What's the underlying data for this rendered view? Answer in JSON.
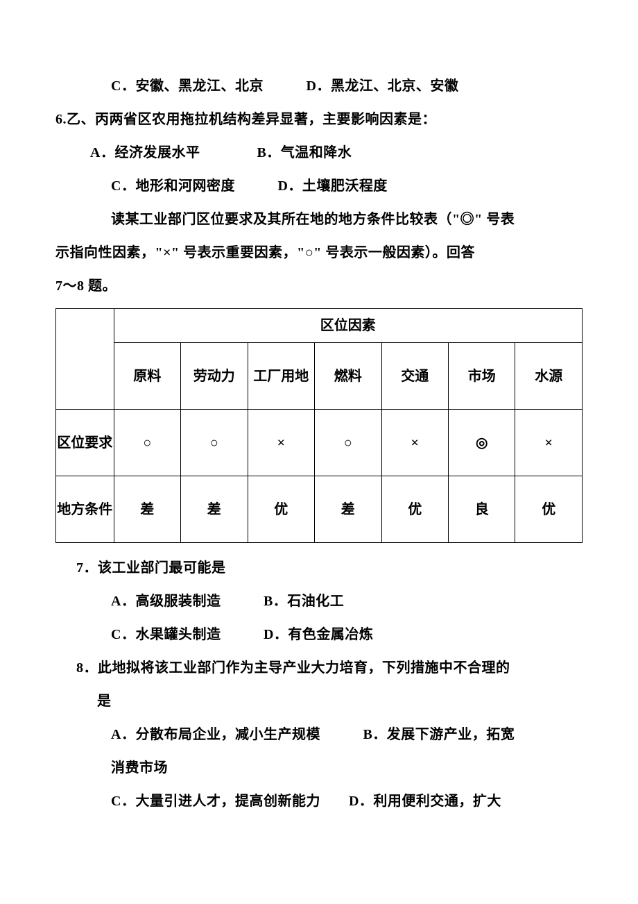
{
  "text": {
    "line1": "C．安徽、黑龙江、北京　　　D．黑龙江、北京、安徽",
    "q6": "6.乙、丙两省区农用拖拉机结构差异显著，主要影响因素是：",
    "q6a": "A．经济发展水平　　　　B．气温和降水",
    "q6c": "C．地形和河网密度　　　D．土壤肥沃程度",
    "para1": "读某工业部门区位要求及其所在地的地方条件比较表（\"◎\" 号表",
    "para2": "示指向性因素，\"×\" 号表示重要因素，\"○\" 号表示一般因素）。回答",
    "para3": "7～8 题。",
    "q7": "7．该工业部门最可能是",
    "q7a": "A．高级服装制造　　　B．石油化工",
    "q7c": "C．水果罐头制造　　　D．有色金属冶炼",
    "q8": "8．此地拟将该工业部门作为主导产业大力培育，下列措施中不合理的",
    "q8sub": "是",
    "q8a": "A．分散布局企业，减小生产规模　　　B．发展下游产业，拓宽",
    "q8a2": "消费市场",
    "q8c": "C．大量引进人才，提高创新能力　　D．利用便利交通，扩大"
  },
  "table": {
    "header_span": "区位因素",
    "columns": [
      "原料",
      "劳动力",
      "工厂用地",
      "燃料",
      "交通",
      "市场",
      "水源"
    ],
    "rows": [
      {
        "label": "区位要求",
        "cells": [
          "○",
          "○",
          "×",
          "○",
          "×",
          "◎",
          "×"
        ]
      },
      {
        "label": "地方条件",
        "cells": [
          "差",
          "差",
          "优",
          "差",
          "优",
          "良",
          "优"
        ]
      }
    ],
    "colors": {
      "border": "#000000",
      "text": "#000000",
      "background": "#ffffff"
    },
    "font_size_pt": 15,
    "font_weight": "bold"
  }
}
